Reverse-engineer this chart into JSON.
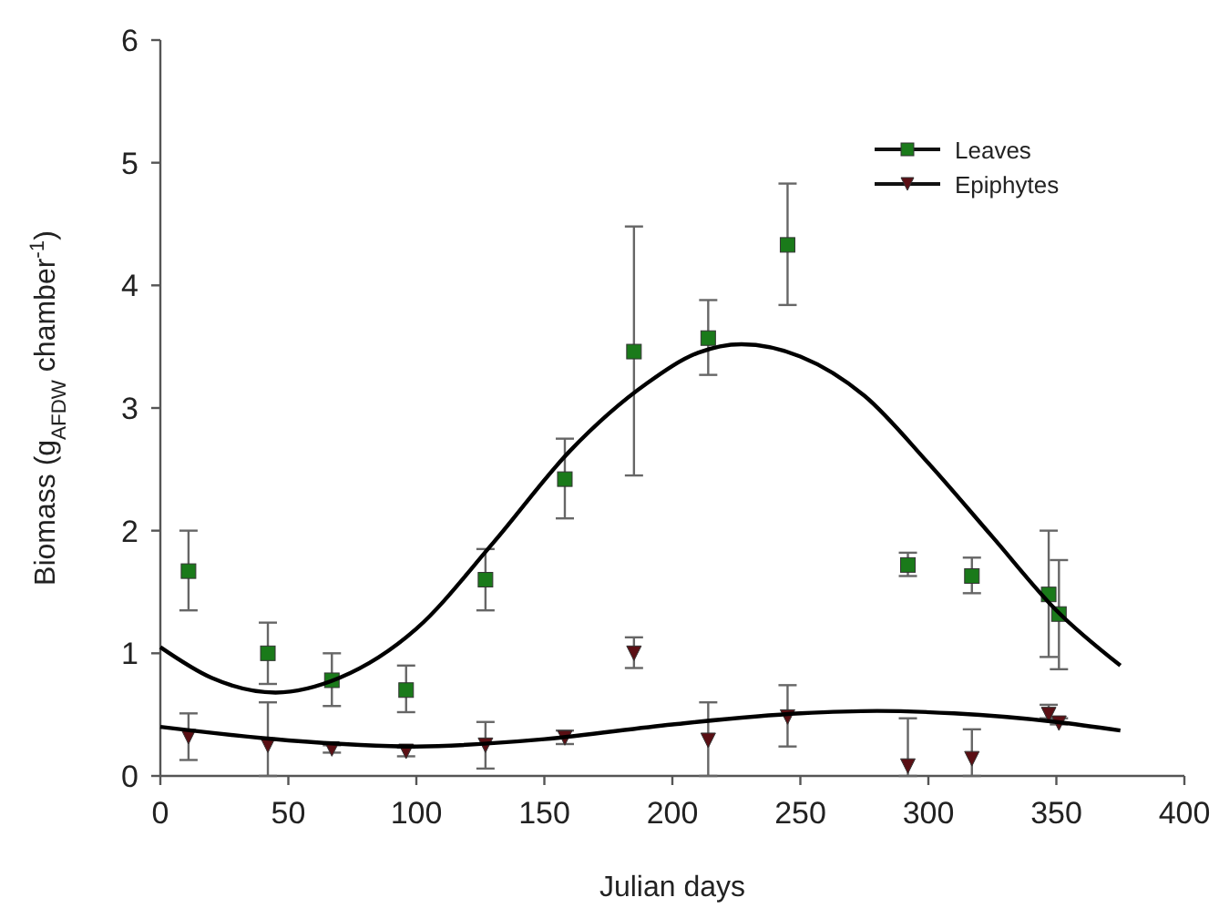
{
  "chart_data": {
    "type": "scatter",
    "xlabel": "Julian days",
    "ylabel": "Biomass (g$_{AFDW}$ chamber$^{-1}$)",
    "xlim": [
      0,
      400
    ],
    "xticks": [
      0,
      50,
      100,
      150,
      200,
      250,
      300,
      350,
      400
    ],
    "ylim": [
      0,
      6
    ],
    "yticks": [
      0,
      1,
      2,
      3,
      4,
      5,
      6
    ],
    "grid": false,
    "legend": "top right",
    "series": [
      {
        "name": "Leaves",
        "marker": "square",
        "color": "#1a7a1a",
        "x": [
          11,
          42,
          67,
          96,
          127,
          158,
          185,
          214,
          245,
          292,
          317,
          347,
          351
        ],
        "values": [
          1.67,
          1.0,
          0.78,
          0.7,
          1.6,
          2.42,
          3.46,
          3.57,
          4.33,
          1.72,
          1.63,
          1.48,
          1.32
        ],
        "errors": [
          [
            1.35,
            2.0
          ],
          [
            0.75,
            1.25
          ],
          [
            0.57,
            1.0
          ],
          [
            0.52,
            0.9
          ],
          [
            1.35,
            1.85
          ],
          [
            2.1,
            2.75
          ],
          [
            2.45,
            4.48
          ],
          [
            3.27,
            3.88
          ],
          [
            3.84,
            4.83
          ],
          [
            1.63,
            1.82
          ],
          [
            1.49,
            1.78
          ],
          [
            0.97,
            2.0
          ],
          [
            0.87,
            1.76
          ]
        ]
      },
      {
        "name": "Epiphytes",
        "marker": "triangle",
        "color": "#5a0f14",
        "x": [
          11,
          42,
          67,
          96,
          127,
          158,
          185,
          214,
          245,
          292,
          317,
          347,
          351
        ],
        "values": [
          0.32,
          0.25,
          0.22,
          0.2,
          0.25,
          0.31,
          1.0,
          0.29,
          0.48,
          0.08,
          0.14,
          0.5,
          0.43
        ],
        "errors": [
          [
            0.13,
            0.51
          ],
          [
            0,
            0.6
          ],
          [
            0.19,
            0.25
          ],
          [
            0.16,
            0.23
          ],
          [
            0.06,
            0.44
          ],
          [
            0.26,
            0.37
          ],
          [
            0.88,
            1.13
          ],
          [
            0,
            0.6
          ],
          [
            0.24,
            0.74
          ],
          [
            0,
            0.47
          ],
          [
            0,
            0.38
          ],
          [
            0.47,
            0.58
          ],
          [
            0.42,
            0.47
          ]
        ]
      },
      {
        "type": "line",
        "color": "#000000",
        "x": [
          0,
          20,
          45,
          70,
          100,
          130,
          160,
          190,
          210,
          227,
          250,
          275,
          300,
          325,
          350,
          375
        ],
        "values": [
          1.05,
          0.8,
          0.68,
          0.8,
          1.2,
          1.9,
          2.65,
          3.2,
          3.45,
          3.52,
          3.42,
          3.1,
          2.55,
          1.95,
          1.35,
          0.9
        ]
      },
      {
        "type": "line",
        "color": "#000000",
        "x": [
          0,
          50,
          100,
          150,
          200,
          250,
          280,
          310,
          350,
          375
        ],
        "values": [
          0.4,
          0.29,
          0.24,
          0.3,
          0.42,
          0.51,
          0.53,
          0.51,
          0.44,
          0.37
        ]
      }
    ]
  }
}
